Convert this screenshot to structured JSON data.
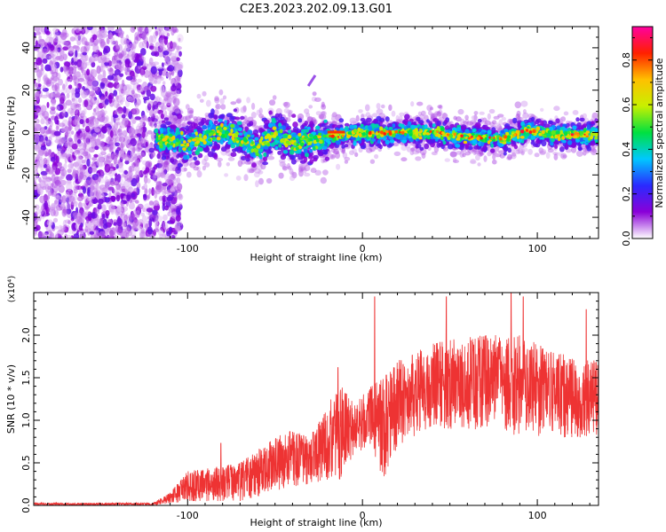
{
  "title": "C2E3.2023.202.09.13.G01",
  "chart_data": [
    {
      "type": "heatmap",
      "name": "spectrogram",
      "xlabel": "Height of straight line (km)",
      "ylabel": "Frequency (Hz)",
      "xlim": [
        -188,
        135
      ],
      "ylim": [
        -50,
        50
      ],
      "xticks": [
        -100,
        0,
        100
      ],
      "yticks": [
        -40,
        -20,
        0,
        20,
        40
      ],
      "xtick_labels": [
        "-100",
        "0",
        "100"
      ],
      "ytick_labels": [
        "-40",
        "-20",
        "0",
        "20",
        "40"
      ],
      "noise_region_x": [
        -188,
        -112
      ],
      "signal_band": [
        {
          "x": -115,
          "y": -3
        },
        {
          "x": -100,
          "y": -5
        },
        {
          "x": -90,
          "y": -2
        },
        {
          "x": -80,
          "y": 1
        },
        {
          "x": -70,
          "y": -2
        },
        {
          "x": -60,
          "y": -7
        },
        {
          "x": -50,
          "y": 0
        },
        {
          "x": -40,
          "y": -5
        },
        {
          "x": -30,
          "y": -4
        },
        {
          "x": -20,
          "y": -2
        },
        {
          "x": 0,
          "y": 0
        },
        {
          "x": 20,
          "y": 0
        },
        {
          "x": 40,
          "y": 0
        },
        {
          "x": 60,
          "y": -2
        },
        {
          "x": 80,
          "y": -3
        },
        {
          "x": 95,
          "y": 1
        },
        {
          "x": 110,
          "y": -1
        },
        {
          "x": 135,
          "y": -1
        }
      ],
      "annotations": [
        {
          "x1": -31,
          "y1": 22,
          "x2": -27,
          "y2": 27
        }
      ],
      "colorbar": {
        "label": "Normalized spectral amplitude",
        "range": [
          0.0,
          0.95
        ],
        "ticks": [
          0.0,
          0.2,
          0.4,
          0.6,
          0.8
        ],
        "tick_labels": [
          "0.0",
          "0.2",
          "0.4",
          "0.6",
          "0.8"
        ],
        "colors": [
          "#ffffff",
          "#8a00d8",
          "#2a2aff",
          "#00c8ff",
          "#00e040",
          "#c8f000",
          "#ffc000",
          "#ff2000",
          "#ff00a0"
        ]
      }
    },
    {
      "type": "line",
      "name": "snr",
      "xlabel": "Height of straight line (km)",
      "ylabel": "SNR (10 * v/v)",
      "ylabel_exponent": "(x10⁴)",
      "xlim": [
        -188,
        135
      ],
      "ylim": [
        0.0,
        2.5
      ],
      "xticks": [
        -100,
        0,
        100
      ],
      "yticks": [
        0.0,
        0.5,
        1.0,
        1.5,
        2.0
      ],
      "xtick_labels": [
        "-100",
        "0",
        "100"
      ],
      "ytick_labels": [
        "0.0",
        "0.5",
        "1.0",
        "1.5",
        "2.0"
      ],
      "color": "#ee3333",
      "envelope": [
        {
          "x": -188,
          "lo": 0.0,
          "hi": 0.03
        },
        {
          "x": -120,
          "lo": 0.0,
          "hi": 0.03
        },
        {
          "x": -110,
          "lo": 0.02,
          "hi": 0.15
        },
        {
          "x": -100,
          "lo": 0.05,
          "hi": 0.4
        },
        {
          "x": -85,
          "lo": 0.05,
          "hi": 0.45
        },
        {
          "x": -70,
          "lo": 0.05,
          "hi": 0.5
        },
        {
          "x": -60,
          "lo": 0.1,
          "hi": 0.65
        },
        {
          "x": -45,
          "lo": 0.2,
          "hi": 0.9
        },
        {
          "x": -30,
          "lo": 0.25,
          "hi": 0.8
        },
        {
          "x": -20,
          "lo": 0.3,
          "hi": 1.2
        },
        {
          "x": -12,
          "lo": 0.3,
          "hi": 1.4
        },
        {
          "x": -5,
          "lo": 0.6,
          "hi": 1.2
        },
        {
          "x": 5,
          "lo": 0.7,
          "hi": 1.4
        },
        {
          "x": 12,
          "lo": 0.3,
          "hi": 1.5
        },
        {
          "x": 20,
          "lo": 0.7,
          "hi": 1.7
        },
        {
          "x": 40,
          "lo": 0.9,
          "hi": 1.9
        },
        {
          "x": 60,
          "lo": 0.9,
          "hi": 2.0
        },
        {
          "x": 90,
          "lo": 0.8,
          "hi": 2.0
        },
        {
          "x": 110,
          "lo": 0.8,
          "hi": 1.8
        },
        {
          "x": 135,
          "lo": 0.8,
          "hi": 1.7
        }
      ],
      "spikes": [
        {
          "x": -81,
          "y": 0.73
        },
        {
          "x": -14,
          "y": 1.62
        },
        {
          "x": 7,
          "y": 2.45
        },
        {
          "x": 48,
          "y": 2.45
        },
        {
          "x": 85,
          "y": 2.5
        },
        {
          "x": 92,
          "y": 2.45
        },
        {
          "x": 128,
          "y": 2.3
        }
      ]
    }
  ]
}
